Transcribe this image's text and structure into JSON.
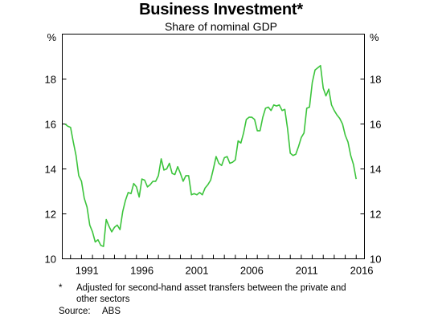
{
  "chart_data": {
    "type": "line",
    "title": "Business Investment*",
    "subtitle": "Share of nominal GDP",
    "ylabel_left": "%",
    "ylabel_right": "%",
    "ylim": [
      10,
      20
    ],
    "xlim": [
      1989.25,
      2016.75
    ],
    "yticks": [
      "10",
      "12",
      "14",
      "16",
      "18"
    ],
    "xticks": [
      "1991",
      "1996",
      "2001",
      "2006",
      "2011",
      "2016"
    ],
    "grid": false,
    "line_color": "#3cc43c",
    "series": [
      {
        "x": [
          1989.5,
          1989.75,
          1990.0,
          1990.25,
          1990.5,
          1990.75,
          1991.0,
          1991.25,
          1991.5,
          1991.75,
          1992.0,
          1992.25,
          1992.5,
          1992.75,
          1993.0,
          1993.25,
          1993.5,
          1993.75,
          1994.0,
          1994.25,
          1994.5,
          1994.75,
          1995.0,
          1995.25,
          1995.5,
          1995.75,
          1996.0,
          1996.25,
          1996.5,
          1996.75,
          1997.0,
          1997.25,
          1997.5,
          1997.75,
          1998.0,
          1998.25,
          1998.5,
          1998.75,
          1999.0,
          1999.25,
          1999.5,
          1999.75,
          2000.0,
          2000.25,
          2000.5,
          2000.75,
          2001.0,
          2001.25,
          2001.5,
          2001.75,
          2002.0,
          2002.25,
          2002.5,
          2002.75,
          2003.0,
          2003.25,
          2003.5,
          2003.75,
          2004.0,
          2004.25,
          2004.5,
          2004.75,
          2005.0,
          2005.25,
          2005.5,
          2005.75,
          2006.0,
          2006.25,
          2006.5,
          2006.75,
          2007.0,
          2007.25,
          2007.5,
          2007.75,
          2008.0,
          2008.25,
          2008.5,
          2008.75,
          2009.0,
          2009.25,
          2009.5,
          2009.75,
          2010.0,
          2010.25,
          2010.5,
          2010.75,
          2011.0,
          2011.25,
          2011.5,
          2011.75,
          2012.0,
          2012.25,
          2012.5,
          2012.75,
          2013.0,
          2013.25,
          2013.5,
          2013.75,
          2014.0,
          2014.25,
          2014.5,
          2014.75,
          2015.0,
          2015.25,
          2015.5,
          2015.75,
          2016.0
        ],
        "values": [
          16.0,
          15.9,
          15.85,
          15.2,
          14.6,
          13.7,
          13.45,
          12.7,
          12.3,
          11.5,
          11.2,
          10.75,
          10.85,
          10.6,
          10.55,
          11.75,
          11.45,
          11.2,
          11.4,
          11.5,
          11.3,
          12.1,
          12.6,
          12.95,
          12.9,
          13.35,
          13.2,
          12.75,
          13.55,
          13.5,
          13.2,
          13.3,
          13.45,
          13.45,
          13.7,
          14.45,
          13.95,
          14.0,
          14.25,
          13.8,
          13.75,
          14.1,
          13.8,
          13.45,
          13.7,
          13.7,
          12.85,
          12.9,
          12.85,
          12.95,
          12.85,
          13.15,
          13.3,
          13.5,
          14.0,
          14.55,
          14.25,
          14.15,
          14.5,
          14.55,
          14.25,
          14.3,
          14.4,
          15.25,
          15.15,
          15.6,
          16.2,
          16.3,
          16.3,
          16.2,
          15.7,
          15.7,
          16.3,
          16.7,
          16.75,
          16.6,
          16.85,
          16.8,
          16.85,
          16.6,
          16.65,
          15.8,
          14.7,
          14.6,
          14.65,
          15.0,
          15.4,
          15.6,
          16.7,
          16.75,
          17.85,
          18.4,
          18.5,
          18.6,
          17.6,
          17.25,
          17.55,
          16.85,
          16.6,
          16.4,
          16.25,
          16.0,
          15.5,
          15.2,
          14.6,
          14.2,
          13.55
        ]
      }
    ]
  },
  "footnote": {
    "marker": "*",
    "text": "Adjusted for second-hand asset transfers between the private and other sectors"
  },
  "source": {
    "label": "Source:",
    "value": "ABS"
  }
}
